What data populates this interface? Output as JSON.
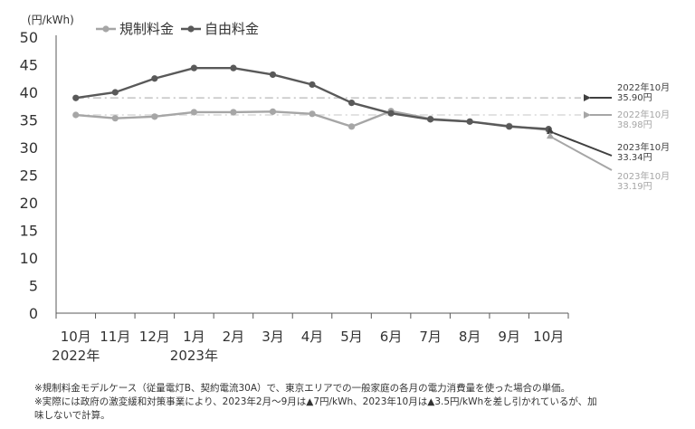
{
  "chart_data": {
    "type": "line",
    "ylabel": "(円/kWh)",
    "ylim": [
      0,
      50
    ],
    "yticks": [
      0,
      5,
      10,
      15,
      20,
      25,
      30,
      35,
      40,
      45,
      50
    ],
    "categories": [
      "10月",
      "11月",
      "12月",
      "1月",
      "2月",
      "3月",
      "4月",
      "5月",
      "6月",
      "7月",
      "8月",
      "9月",
      "10月"
    ],
    "year_labels": [
      {
        "label": "2022年",
        "category_index": 0
      },
      {
        "label": "2023年",
        "category_index": 3
      }
    ],
    "grid": false,
    "legend_position": "top-left",
    "series": [
      {
        "name": "規制料金",
        "color": "#a6a6a6",
        "values": [
          35.9,
          35.3,
          35.6,
          36.4,
          36.4,
          36.5,
          36.1,
          33.8,
          36.6,
          35.2,
          34.7,
          33.9,
          33.19
        ]
      },
      {
        "name": "自由料金",
        "color": "#595959",
        "values": [
          38.98,
          40.0,
          42.5,
          44.4,
          44.4,
          43.2,
          41.4,
          38.1,
          36.2,
          35.1,
          34.7,
          33.8,
          33.34
        ]
      }
    ],
    "reference_lines": [
      {
        "value": 38.98,
        "color": "#c8c8c8"
      },
      {
        "value": 35.9,
        "color": "#d9d9d9"
      }
    ],
    "annotations": [
      {
        "line1": "2022年10月",
        "line2": "35.90円",
        "color": "#404040"
      },
      {
        "line1": "2022年10月",
        "line2": "38.98円",
        "color": "#a6a6a6"
      },
      {
        "line1": "2023年10月",
        "line2": "33.34円",
        "color": "#404040"
      },
      {
        "line1": "2023年10月",
        "line2": "33.19円",
        "color": "#a6a6a6"
      }
    ]
  },
  "notes": [
    "※規制料金モデルケース（従量電灯B、契約電流30A）で、東京エリアでの一般家庭の各月の電力消費量を使った場合の単価。",
    "※実際には政府の激変緩和対策事業により、2023年2月～9月は▲7円/kWh、2023年10月は▲3.5円/kWhを差し引かれているが、加",
    "味しないで計算。"
  ]
}
